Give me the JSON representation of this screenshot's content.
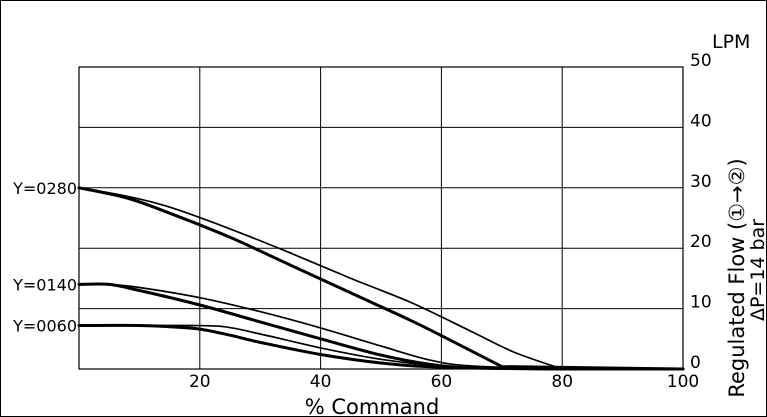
{
  "chart_data": {
    "type": "line",
    "xlabel": "% Command",
    "ylabel": "Regulated Flow (①→②)",
    "ylabel2": "ΔP=14 bar",
    "unit": "LPM",
    "xlim": [
      0,
      100
    ],
    "ylim": [
      0,
      50
    ],
    "grid": true,
    "x_ticks": [
      20,
      40,
      60,
      80,
      100
    ],
    "y_ticks": [
      0,
      10,
      20,
      30,
      40,
      50
    ],
    "series": [
      {
        "name": "Y=0280",
        "curves": [
          {
            "weight": "thin",
            "x": [
              0,
              8,
              15,
              25,
              35,
              45,
              55,
              65,
              72,
              80
            ],
            "y": [
              30,
              28.6,
              26.8,
              23.2,
              19.2,
              15,
              11,
              6.2,
              2.8,
              0
            ]
          },
          {
            "weight": "thick",
            "x": [
              0,
              8,
              15,
              25,
              35,
              45,
              55,
              62,
              70
            ],
            "y": [
              30,
              28.3,
              25.8,
              21.8,
              17.2,
              12.6,
              8,
              4.5,
              0.4
            ]
          }
        ]
      },
      {
        "name": "Y=0140",
        "curves": [
          {
            "weight": "thin",
            "x": [
              0,
              5,
              10,
              20,
              30,
              40,
              50,
              58,
              65,
              80
            ],
            "y": [
              14,
              14,
              13.5,
              11.8,
              9.5,
              6.8,
              3.8,
              1.5,
              0.5,
              0
            ]
          },
          {
            "weight": "thick",
            "x": [
              0,
              5,
              10,
              20,
              30,
              40,
              50,
              58,
              65,
              80
            ],
            "y": [
              14,
              14,
              13,
              10.6,
              7.8,
              5,
              2.3,
              0.8,
              0.2,
              0
            ]
          }
        ]
      },
      {
        "name": "Y=0060",
        "curves": [
          {
            "weight": "thin",
            "x": [
              0,
              10,
              18,
              24,
              30,
              40,
              50,
              60,
              70,
              80
            ],
            "y": [
              7.2,
              7.2,
              7.2,
              7.0,
              5.8,
              3.5,
              1.6,
              0.5,
              0.1,
              0
            ]
          },
          {
            "weight": "thick",
            "x": [
              0,
              10,
              15,
              20,
              25,
              30,
              40,
              50,
              60,
              80
            ],
            "y": [
              7.2,
              7.2,
              7.0,
              6.6,
              5.6,
              4.4,
              2.4,
              1.0,
              0.3,
              0
            ]
          }
        ]
      }
    ]
  }
}
